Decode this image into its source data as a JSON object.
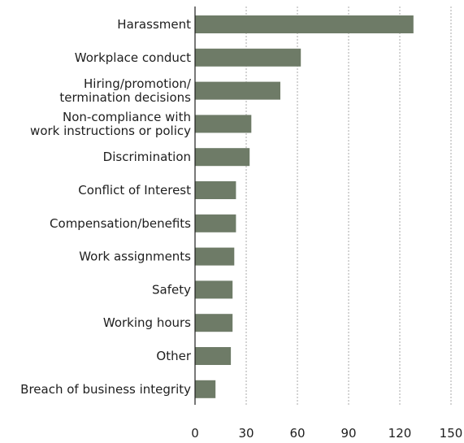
{
  "chart_data": {
    "type": "bar",
    "orientation": "horizontal",
    "title": "",
    "xlabel": "",
    "ylabel": "",
    "categories": [
      [
        "Harassment"
      ],
      [
        "Workplace conduct"
      ],
      [
        "Hiring/promotion/",
        "termination decisions"
      ],
      [
        "Non-compliance with",
        "work instructions or policy"
      ],
      [
        "Discrimination"
      ],
      [
        "Conflict of Interest"
      ],
      [
        "Compensation/benefits"
      ],
      [
        "Work assignments"
      ],
      [
        "Safety"
      ],
      [
        "Working hours"
      ],
      [
        "Other"
      ],
      [
        "Breach of business integrity"
      ]
    ],
    "values": [
      128,
      62,
      50,
      33,
      32,
      24,
      24,
      23,
      22,
      22,
      21,
      12
    ],
    "xlim": [
      0,
      150
    ],
    "xticks": [
      0,
      30,
      60,
      90,
      120,
      150
    ],
    "grid": "vertical dashed",
    "legend": "none",
    "bar_color": "#6e7b67",
    "axis_color": "#1e1e1e",
    "grid_color": "#a8a8a8"
  }
}
